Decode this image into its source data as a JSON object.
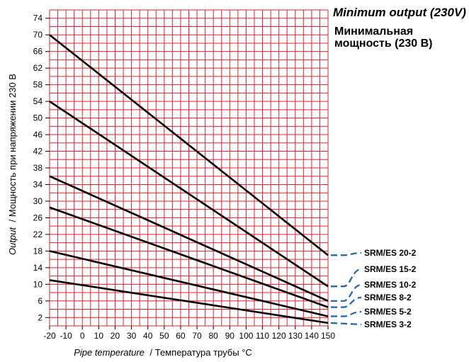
{
  "header": {
    "title_en": "Minimum output (230V)",
    "title_ru": "Минимальная мощность (230 В)"
  },
  "chart_data": {
    "type": "line",
    "title": "Minimum output (230V)",
    "subtitle": "Минимальная мощность (230 В)",
    "xlabel_en": "Pipe temperature",
    "xlabel_ru": "/ Температура трубы °C",
    "ylabel_en": "Output",
    "ylabel_ru": "/ Мощность при напряжении 230 В",
    "xlim": [
      -20,
      150
    ],
    "ylim": [
      0,
      76
    ],
    "x_ticks": [
      -20,
      -10,
      0,
      10,
      20,
      30,
      40,
      50,
      60,
      70,
      80,
      90,
      100,
      110,
      120,
      130,
      140,
      150
    ],
    "y_ticks": [
      2,
      6,
      10,
      14,
      18,
      22,
      26,
      30,
      34,
      38,
      42,
      46,
      50,
      54,
      58,
      62,
      66,
      70,
      74
    ],
    "grid": true,
    "grid_color": "#e8202a",
    "line_color": "#000000",
    "legend_color": "#1f5fb4",
    "legend_placement": "right",
    "series": [
      {
        "name": "SRM/ES 20-2",
        "x": [
          -20,
          150
        ],
        "y": [
          70,
          17
        ]
      },
      {
        "name": "SRM/ES 15-2",
        "x": [
          -20,
          150
        ],
        "y": [
          54,
          9.5
        ]
      },
      {
        "name": "SRM/ES 10-2",
        "x": [
          -20,
          150
        ],
        "y": [
          36,
          6
        ]
      },
      {
        "name": "SRM/ES 8-2",
        "x": [
          -20,
          150
        ],
        "y": [
          28.5,
          4.5
        ]
      },
      {
        "name": "SRM/ES 5-2",
        "x": [
          -20,
          150
        ],
        "y": [
          18,
          2.3
        ]
      },
      {
        "name": "SRM/ES 3-2",
        "x": [
          -20,
          150
        ],
        "y": [
          11,
          0.7
        ]
      }
    ]
  }
}
